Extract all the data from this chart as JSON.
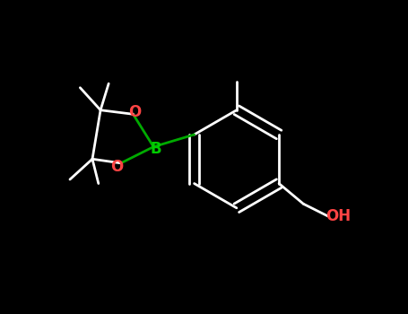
{
  "background_color": "#000000",
  "bond_color": "#ffffff",
  "bond_width": 2.0,
  "atom_colors": {
    "O": "#ff0000",
    "B": "#00aa00",
    "C": "#ffffff",
    "H": "#ffffff"
  },
  "label_fontsize": 12,
  "label_color_O": "#ff4444",
  "label_color_B": "#00cc00",
  "label_color_OH": "#ff4444"
}
